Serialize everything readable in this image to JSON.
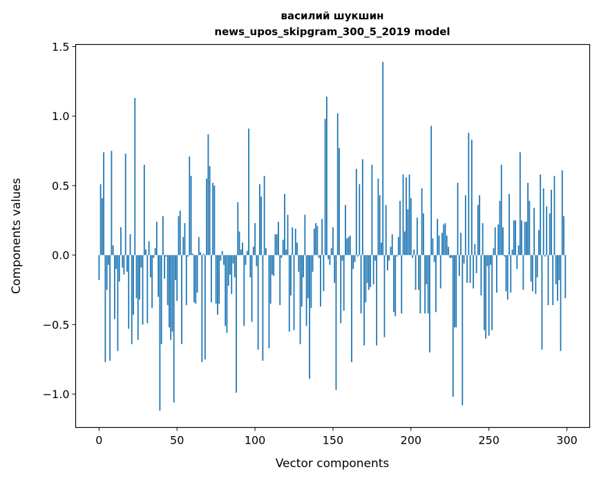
{
  "chart_data": {
    "type": "bar",
    "title": [
      "василий шукшин",
      "news_upos_skipgram_300_5_2019 model"
    ],
    "xlabel": "Vector components",
    "ylabel": "Components values",
    "xlim": [
      -15,
      314.6
    ],
    "ylim": [
      -1.24,
      1.515
    ],
    "xticks": [
      0,
      50,
      100,
      150,
      200,
      250,
      300
    ],
    "xtick_labels": [
      "0",
      "50",
      "100",
      "150",
      "200",
      "250",
      "300"
    ],
    "yticks": [
      -1.0,
      -0.5,
      0.0,
      0.5,
      1.0,
      1.5
    ],
    "ytick_labels": [
      "−1.0",
      "−0.5",
      "0.0",
      "0.5",
      "1.0",
      "1.5"
    ],
    "grid": false,
    "bar_color": "#1f77b4",
    "values": [
      -0.18,
      0.51,
      0.41,
      0.74,
      -0.77,
      -0.25,
      -0.07,
      -0.76,
      0.75,
      0.07,
      -0.46,
      -0.1,
      -0.69,
      -0.19,
      0.2,
      -0.09,
      -0.14,
      0.73,
      -0.12,
      -0.53,
      0.15,
      -0.64,
      -0.43,
      1.13,
      -0.31,
      -0.61,
      -0.32,
      -0.09,
      -0.5,
      0.65,
      0.04,
      -0.49,
      0.1,
      -0.16,
      -0.38,
      -0.02,
      0.05,
      0.24,
      -0.3,
      -1.12,
      -0.64,
      0.28,
      -0.17,
      -0.01,
      -0.36,
      -0.52,
      -0.61,
      -0.55,
      -1.06,
      -0.18,
      -0.33,
      0.28,
      0.32,
      -0.64,
      0.13,
      0.23,
      -0.36,
      -0.01,
      0.71,
      0.57,
      0.01,
      -0.34,
      -0.35,
      -0.27,
      0.13,
      0.02,
      -0.77,
      0.01,
      -0.75,
      0.55,
      0.87,
      0.64,
      -0.34,
      0.52,
      0.5,
      -0.35,
      -0.43,
      -0.35,
      -0.04,
      0.03,
      -0.07,
      -0.51,
      -0.56,
      -0.22,
      -0.14,
      -0.28,
      -0.06,
      -0.16,
      -0.99,
      0.38,
      0.17,
      0.04,
      0.09,
      -0.51,
      -0.07,
      0.03,
      0.91,
      -0.16,
      -0.48,
      0.06,
      0.23,
      -0.08,
      -0.68,
      0.51,
      0.42,
      -0.76,
      0.57,
      0.05,
      0.0,
      -0.67,
      -0.35,
      -0.14,
      -0.15,
      0.15,
      0.15,
      0.24,
      -0.36,
      -0.02,
      0.11,
      0.44,
      0.04,
      0.29,
      -0.55,
      -0.29,
      0.2,
      -0.54,
      0.19,
      0.09,
      -0.12,
      -0.64,
      -0.37,
      -0.16,
      0.29,
      -0.51,
      -0.31,
      -0.89,
      -0.38,
      -0.12,
      0.19,
      0.23,
      0.21,
      -0.02,
      -0.37,
      0.26,
      -0.26,
      0.98,
      1.14,
      -0.03,
      -0.07,
      0.05,
      0.2,
      -0.2,
      -0.97,
      1.02,
      0.77,
      -0.49,
      -0.04,
      -0.4,
      0.36,
      0.12,
      0.13,
      0.14,
      -0.77,
      -0.1,
      -0.05,
      0.62,
      -0.01,
      0.51,
      -0.42,
      0.69,
      -0.65,
      -0.34,
      -0.2,
      -0.25,
      -0.23,
      0.65,
      -0.21,
      -0.04,
      -0.65,
      0.55,
      0.43,
      0.09,
      1.39,
      -0.59,
      0.36,
      -0.11,
      -0.04,
      0.06,
      0.15,
      -0.41,
      -0.44,
      -0.01,
      0.13,
      0.39,
      -0.42,
      0.58,
      0.17,
      0.56,
      0.33,
      0.58,
      0.41,
      -0.02,
      0.04,
      -0.25,
      0.27,
      -0.25,
      -0.42,
      0.48,
      0.3,
      -0.42,
      -0.21,
      -0.42,
      -0.7,
      0.93,
      0.12,
      -0.05,
      -0.41,
      0.26,
      0.14,
      -0.24,
      0.16,
      0.22,
      0.23,
      0.14,
      0.06,
      -0.02,
      -0.02,
      -1.02,
      -0.52,
      -0.52,
      0.52,
      -0.15,
      0.16,
      -1.08,
      -0.06,
      0.43,
      -0.2,
      0.88,
      -0.2,
      0.83,
      -0.24,
      0.08,
      -0.13,
      0.36,
      0.43,
      -0.29,
      0.23,
      -0.54,
      -0.6,
      -0.08,
      -0.58,
      -0.07,
      -0.54,
      0.05,
      0.2,
      -0.27,
      0.22,
      0.39,
      0.65,
      0.2,
      -0.01,
      -0.26,
      -0.32,
      0.44,
      -0.27,
      0.04,
      0.25,
      0.25,
      -0.1,
      0.07,
      0.74,
      0.25,
      -0.25,
      0.24,
      0.24,
      0.52,
      0.39,
      -0.19,
      -0.26,
      0.34,
      -0.28,
      -0.16,
      0.18,
      0.58,
      -0.68,
      0.48,
      -0.01,
      0.35,
      -0.36,
      0.3,
      0.47,
      -0.36,
      0.57,
      -0.21,
      -0.33,
      -0.18,
      -0.69,
      0.61,
      0.28,
      -0.31
    ]
  }
}
